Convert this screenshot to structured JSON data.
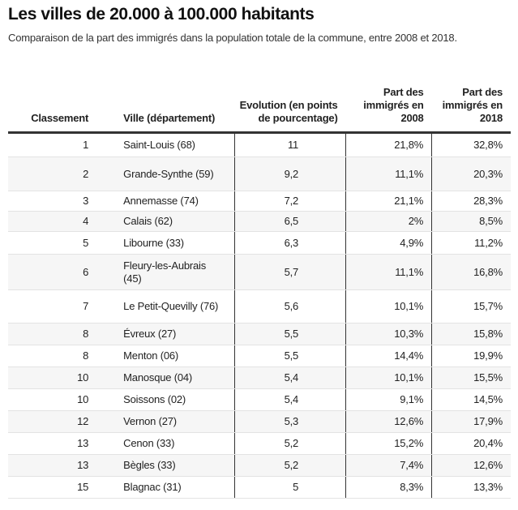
{
  "title": "Les villes de 20.000 à 100.000 habitants",
  "subtitle": "Comparaison de la part des immigrés dans la population totale de la commune, entre 2008 et 2018.",
  "table": {
    "headers": [
      "Classement",
      "Ville (département)",
      "Evolution (en points de pourcentage)",
      "Part des immigrés en 2008",
      "Part des immigrés en 2018"
    ],
    "rows": [
      [
        "1",
        "Saint-Louis (68)",
        "11",
        "21,8%",
        "32,8%"
      ],
      [
        "2",
        "Grande-Synthe (59)",
        "9,2",
        "11,1%",
        "20,3%"
      ],
      [
        "3",
        "Annemasse (74)",
        "7,2",
        "21,1%",
        "28,3%"
      ],
      [
        "4",
        "Calais (62)",
        "6,5",
        "2%",
        "8,5%"
      ],
      [
        "5",
        "Libourne (33)",
        "6,3",
        "4,9%",
        "11,2%"
      ],
      [
        "6",
        "Fleury-les-Aubrais (45)",
        "5,7",
        "11,1%",
        "16,8%"
      ],
      [
        "7",
        "Le Petit-Quevilly (76)",
        "5,6",
        "10,1%",
        "15,7%"
      ],
      [
        "8",
        "Évreux (27)",
        "5,5",
        "10,3%",
        "15,8%"
      ],
      [
        "8",
        "Menton (06)",
        "5,5",
        "14,4%",
        "19,9%"
      ],
      [
        "10",
        "Manosque (04)",
        "5,4",
        "10,1%",
        "15,5%"
      ],
      [
        "10",
        "Soissons (02)",
        "5,4",
        "9,1%",
        "14,5%"
      ],
      [
        "12",
        "Vernon (27)",
        "5,3",
        "12,6%",
        "17,9%"
      ],
      [
        "13",
        "Cenon (33)",
        "5,2",
        "15,2%",
        "20,4%"
      ],
      [
        "13",
        "Bègles (33)",
        "5,2",
        "7,4%",
        "12,6%"
      ],
      [
        "15",
        "Blagnac (31)",
        "5",
        "8,3%",
        "13,3%"
      ]
    ]
  }
}
